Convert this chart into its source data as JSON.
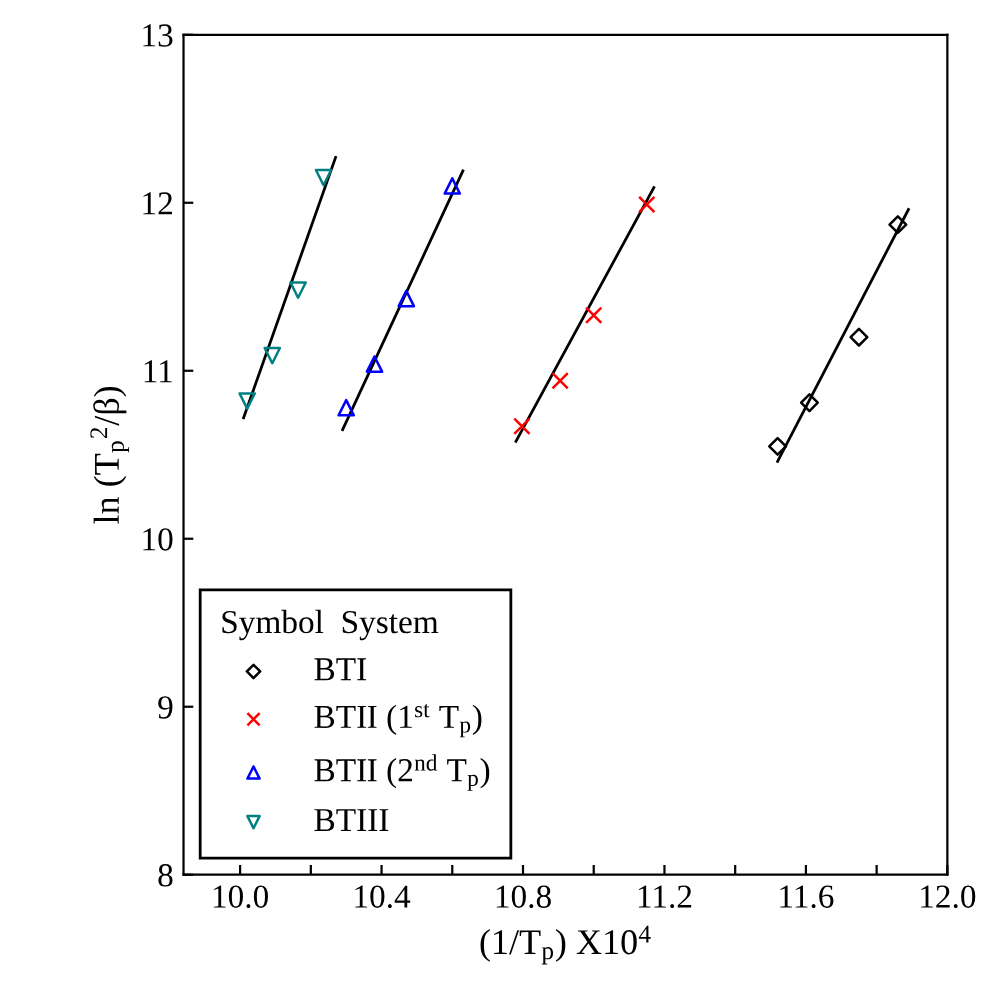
{
  "chart_data": {
    "type": "scatter",
    "xlabel": "(1/T$_{p}$) X10$^{4}$",
    "ylabel": "ln (T$_{p}$$^{2}$/β)",
    "legend_title": "Symbol  System",
    "xlim": [
      9.84,
      12.0
    ],
    "ylim": [
      8,
      13
    ],
    "xticks": [
      {
        "value": 10.0,
        "label": "10.0"
      },
      {
        "value": 10.2,
        "label": null
      },
      10.4,
      {
        "value": 10.6,
        "label": null
      },
      10.8,
      {
        "value": 11.0,
        "label": null
      },
      11.2,
      {
        "value": 11.4,
        "label": null
      },
      11.6,
      {
        "value": 11.8,
        "label": null
      },
      {
        "value": 12.0,
        "label": "12.0"
      }
    ],
    "yticks": [
      8,
      9,
      10,
      11,
      12,
      13
    ],
    "grid": false,
    "legend": "bottom left",
    "series": [
      {
        "name": "BTI",
        "color": "#000000",
        "marker": "diamond",
        "x": [
          11.52,
          11.61,
          11.75,
          11.86
        ],
        "values": [
          10.55,
          10.81,
          11.2,
          11.87
        ]
      },
      {
        "name": "BTII (1$^{st}$ T$_{p}$)",
        "color": "#ff0000",
        "marker": "cross",
        "x": [
          10.797,
          10.905,
          11.0,
          11.15
        ],
        "values": [
          10.67,
          10.94,
          11.33,
          11.99
        ]
      },
      {
        "name": "BTII (2$^{nd}$ T$_{p}$)",
        "color": "#0000ff",
        "marker": "triangle",
        "x": [
          10.3,
          10.38,
          10.47,
          10.6
        ],
        "values": [
          10.78,
          11.04,
          11.43,
          12.1
        ]
      },
      {
        "name": "BTIII",
        "color": "#008080",
        "marker": "triangle_down",
        "x": [
          10.02,
          10.091,
          10.164,
          10.236
        ],
        "values": [
          10.82,
          11.09,
          11.48,
          12.15
        ]
      },
      {
        "type": "line",
        "color": "#000000",
        "x": [
          11.52,
          11.89
        ],
        "values": [
          10.46,
          11.96
        ]
      },
      {
        "type": "line",
        "color": "#000000",
        "x": [
          10.78,
          11.17
        ],
        "values": [
          10.58,
          12.09
        ]
      },
      {
        "type": "line",
        "color": "#000000",
        "x": [
          10.29,
          10.63
        ],
        "values": [
          10.65,
          12.19
        ]
      },
      {
        "type": "line",
        "color": "#000000",
        "x": [
          10.01,
          10.27
        ],
        "values": [
          10.72,
          12.27
        ]
      }
    ]
  }
}
